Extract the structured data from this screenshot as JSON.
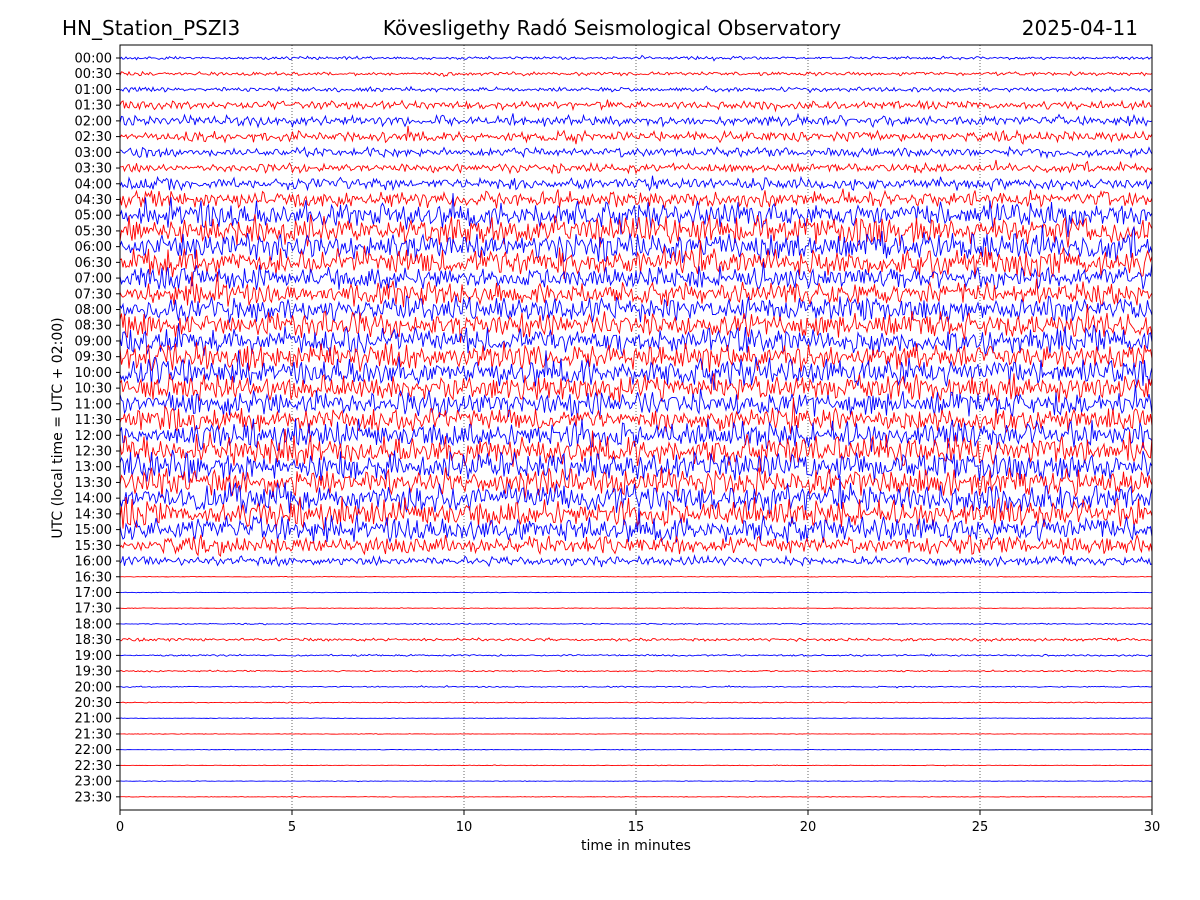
{
  "header": {
    "station": "HN_Station_PSZI3",
    "observatory": "Kövesligethy Radó Seismological Observatory",
    "date": "2025-04-11"
  },
  "chart_data": {
    "type": "line",
    "title": "Kövesligethy Radó Seismological Observatory",
    "xlabel": "time in minutes",
    "ylabel": "UTC (local time = UTC + 02:00)",
    "xlim": [
      0,
      30
    ],
    "x_ticks": [
      "0",
      "5",
      "10",
      "15",
      "20",
      "25",
      "30"
    ],
    "grid": "vertical dotted at every 5 minutes",
    "trace_colors": [
      "#0000ff",
      "#ff0000"
    ],
    "traces": [
      {
        "label": "00:00",
        "amplitude": 0.1
      },
      {
        "label": "00:30",
        "amplitude": 0.12
      },
      {
        "label": "01:00",
        "amplitude": 0.15
      },
      {
        "label": "01:30",
        "amplitude": 0.28
      },
      {
        "label": "02:00",
        "amplitude": 0.35
      },
      {
        "label": "02:30",
        "amplitude": 0.35
      },
      {
        "label": "03:00",
        "amplitude": 0.3
      },
      {
        "label": "03:30",
        "amplitude": 0.3
      },
      {
        "label": "04:00",
        "amplitude": 0.4
      },
      {
        "label": "04:30",
        "amplitude": 0.55
      },
      {
        "label": "05:00",
        "amplitude": 0.85
      },
      {
        "label": "05:30",
        "amplitude": 0.95
      },
      {
        "label": "06:00",
        "amplitude": 0.95
      },
      {
        "label": "06:30",
        "amplitude": 0.95
      },
      {
        "label": "07:00",
        "amplitude": 0.75
      },
      {
        "label": "07:30",
        "amplitude": 0.75
      },
      {
        "label": "08:00",
        "amplitude": 0.8
      },
      {
        "label": "08:30",
        "amplitude": 0.85
      },
      {
        "label": "09:00",
        "amplitude": 0.9
      },
      {
        "label": "09:30",
        "amplitude": 0.9
      },
      {
        "label": "10:00",
        "amplitude": 0.9
      },
      {
        "label": "10:30",
        "amplitude": 0.85
      },
      {
        "label": "11:00",
        "amplitude": 0.85
      },
      {
        "label": "11:30",
        "amplitude": 0.85
      },
      {
        "label": "12:00",
        "amplitude": 0.95
      },
      {
        "label": "12:30",
        "amplitude": 0.95
      },
      {
        "label": "13:00",
        "amplitude": 0.95
      },
      {
        "label": "13:30",
        "amplitude": 0.9
      },
      {
        "label": "14:00",
        "amplitude": 0.95
      },
      {
        "label": "14:30",
        "amplitude": 0.95
      },
      {
        "label": "15:00",
        "amplitude": 0.85
      },
      {
        "label": "15:30",
        "amplitude": 0.6
      },
      {
        "label": "16:00",
        "amplitude": 0.3
      },
      {
        "label": "16:30",
        "amplitude": 0.02
      },
      {
        "label": "17:00",
        "amplitude": 0.02
      },
      {
        "label": "17:30",
        "amplitude": 0.02
      },
      {
        "label": "18:00",
        "amplitude": 0.04
      },
      {
        "label": "18:30",
        "amplitude": 0.1
      },
      {
        "label": "19:00",
        "amplitude": 0.06
      },
      {
        "label": "19:30",
        "amplitude": 0.05
      },
      {
        "label": "20:00",
        "amplitude": 0.04
      },
      {
        "label": "20:30",
        "amplitude": 0.03
      },
      {
        "label": "21:00",
        "amplitude": 0.02
      },
      {
        "label": "21:30",
        "amplitude": 0.02
      },
      {
        "label": "22:00",
        "amplitude": 0.02
      },
      {
        "label": "22:30",
        "amplitude": 0.02
      },
      {
        "label": "23:00",
        "amplitude": 0.02
      },
      {
        "label": "23:30",
        "amplitude": 0.02
      }
    ]
  }
}
